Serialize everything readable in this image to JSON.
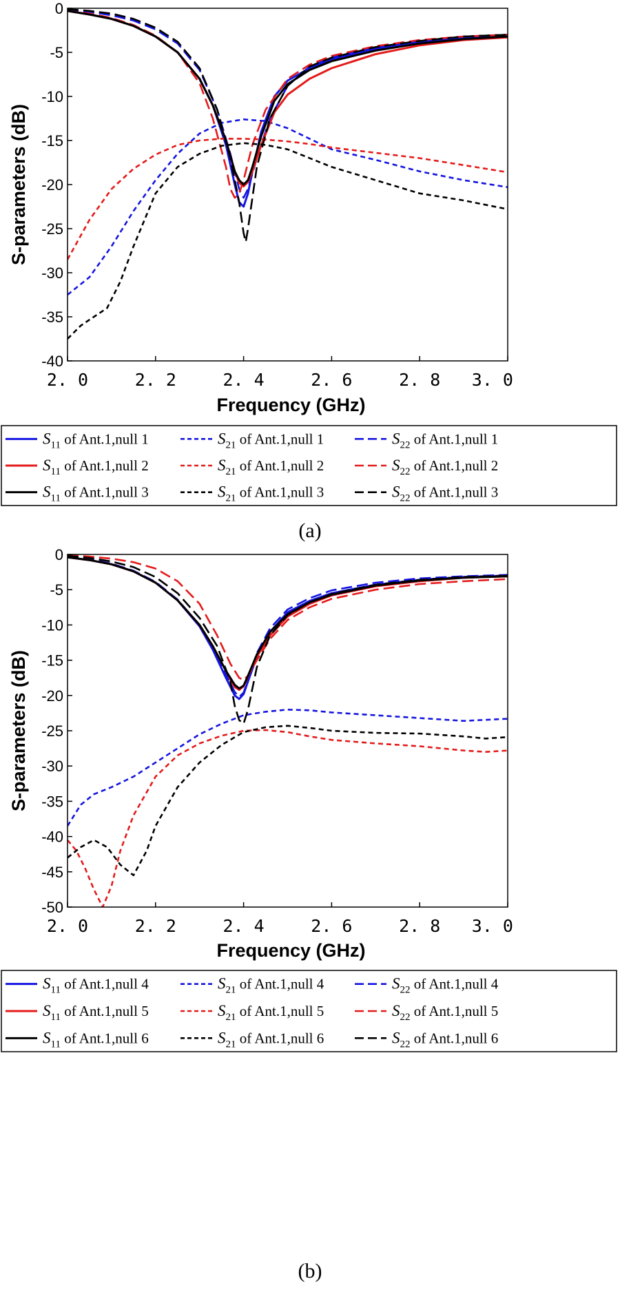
{
  "colors": {
    "blue": "#1515e0",
    "red": "#e41a1a",
    "black": "#000000"
  },
  "legend_text": {
    "s_symbol": "S",
    "of_text": "of Ant.1,null"
  },
  "chart_data": [
    {
      "type": "line",
      "panel_label": "(a)",
      "xlabel": "Frequency (GHz)",
      "ylabel": "S-parameters (dB)",
      "xlim": [
        2.0,
        3.0
      ],
      "ylim": [
        -40,
        0
      ],
      "xticks": [
        "2.0",
        "2.2",
        "2.4",
        "2.6",
        "2.8",
        "3.0"
      ],
      "yticks": [
        "0",
        "-5",
        "-10",
        "-15",
        "-20",
        "-25",
        "-30",
        "-35",
        "-40"
      ],
      "series": [
        {
          "param": "11",
          "null_no": "1",
          "color": "blue",
          "style": "solid",
          "x": [
            2.0,
            2.05,
            2.1,
            2.15,
            2.2,
            2.25,
            2.3,
            2.33,
            2.36,
            2.38,
            2.39,
            2.4,
            2.41,
            2.42,
            2.44,
            2.47,
            2.5,
            2.55,
            2.6,
            2.7,
            2.8,
            2.9,
            3.0
          ],
          "y": [
            -0.3,
            -0.7,
            -1.2,
            -2.0,
            -3.2,
            -5.0,
            -8.0,
            -11.0,
            -15.5,
            -20.0,
            -22.0,
            -22.5,
            -21.0,
            -18.5,
            -14.0,
            -10.0,
            -8.2,
            -6.8,
            -5.8,
            -4.6,
            -3.9,
            -3.4,
            -3.2
          ]
        },
        {
          "param": "21",
          "null_no": "1",
          "color": "blue",
          "style": "dot",
          "x": [
            2.0,
            2.05,
            2.1,
            2.15,
            2.2,
            2.25,
            2.3,
            2.35,
            2.4,
            2.45,
            2.5,
            2.55,
            2.6,
            2.7,
            2.8,
            2.9,
            3.0
          ],
          "y": [
            -32.5,
            -30.5,
            -27.0,
            -23.0,
            -19.5,
            -16.5,
            -14.2,
            -13.0,
            -12.6,
            -12.8,
            -13.6,
            -14.8,
            -16.0,
            -17.2,
            -18.5,
            -19.5,
            -20.3
          ]
        },
        {
          "param": "22",
          "null_no": "1",
          "color": "blue",
          "style": "dash",
          "x": [
            2.0,
            2.05,
            2.1,
            2.15,
            2.2,
            2.25,
            2.3,
            2.34,
            2.37,
            2.39,
            2.4,
            2.41,
            2.43,
            2.46,
            2.5,
            2.55,
            2.6,
            2.7,
            2.8,
            2.9,
            3.0
          ],
          "y": [
            -0.2,
            -0.4,
            -0.8,
            -1.4,
            -2.4,
            -4.0,
            -7.0,
            -11.5,
            -16.5,
            -20.5,
            -21.5,
            -20.5,
            -17.0,
            -12.5,
            -8.8,
            -6.6,
            -5.6,
            -4.4,
            -3.7,
            -3.2,
            -3.0
          ]
        },
        {
          "param": "11",
          "null_no": "2",
          "color": "red",
          "style": "solid",
          "x": [
            2.0,
            2.05,
            2.1,
            2.15,
            2.2,
            2.25,
            2.3,
            2.33,
            2.36,
            2.38,
            2.39,
            2.4,
            2.41,
            2.42,
            2.44,
            2.47,
            2.5,
            2.55,
            2.6,
            2.7,
            2.8,
            2.9,
            3.0
          ],
          "y": [
            -0.3,
            -0.7,
            -1.2,
            -2.0,
            -3.2,
            -5.0,
            -8.0,
            -11.0,
            -15.0,
            -18.5,
            -19.8,
            -20.2,
            -19.7,
            -18.5,
            -15.5,
            -11.8,
            -9.8,
            -8.0,
            -6.8,
            -5.2,
            -4.2,
            -3.6,
            -3.3
          ]
        },
        {
          "param": "21",
          "null_no": "2",
          "color": "red",
          "style": "dot",
          "x": [
            2.0,
            2.05,
            2.1,
            2.15,
            2.2,
            2.25,
            2.3,
            2.35,
            2.4,
            2.45,
            2.5,
            2.55,
            2.6,
            2.7,
            2.8,
            2.9,
            3.0
          ],
          "y": [
            -28.5,
            -24.0,
            -20.5,
            -18.2,
            -16.6,
            -15.5,
            -15.0,
            -14.8,
            -14.8,
            -14.9,
            -15.1,
            -15.4,
            -15.8,
            -16.4,
            -17.0,
            -17.8,
            -18.6
          ]
        },
        {
          "param": "22",
          "null_no": "2",
          "color": "red",
          "style": "dash",
          "x": [
            2.0,
            2.05,
            2.1,
            2.15,
            2.2,
            2.25,
            2.3,
            2.33,
            2.36,
            2.37,
            2.38,
            2.39,
            2.4,
            2.42,
            2.45,
            2.5,
            2.55,
            2.6,
            2.7,
            2.8,
            2.9,
            3.0
          ],
          "y": [
            -0.3,
            -0.6,
            -1.1,
            -1.9,
            -3.1,
            -5.0,
            -8.5,
            -12.5,
            -18.0,
            -20.5,
            -21.5,
            -21.0,
            -19.5,
            -15.5,
            -11.5,
            -8.0,
            -6.4,
            -5.4,
            -4.3,
            -3.6,
            -3.2,
            -3.0
          ]
        },
        {
          "param": "11",
          "null_no": "3",
          "color": "black",
          "style": "solid",
          "x": [
            2.0,
            2.05,
            2.1,
            2.15,
            2.2,
            2.25,
            2.3,
            2.33,
            2.36,
            2.38,
            2.39,
            2.4,
            2.41,
            2.42,
            2.44,
            2.47,
            2.5,
            2.55,
            2.6,
            2.7,
            2.8,
            2.9,
            3.0
          ],
          "y": [
            -0.3,
            -0.7,
            -1.2,
            -2.0,
            -3.2,
            -5.0,
            -8.0,
            -11.0,
            -15.0,
            -18.5,
            -19.5,
            -20.0,
            -19.5,
            -18.0,
            -14.5,
            -10.5,
            -8.6,
            -7.0,
            -6.0,
            -4.8,
            -4.0,
            -3.5,
            -3.2
          ]
        },
        {
          "param": "21",
          "null_no": "3",
          "color": "black",
          "style": "dot",
          "x": [
            2.0,
            2.03,
            2.06,
            2.09,
            2.12,
            2.15,
            2.2,
            2.25,
            2.3,
            2.35,
            2.4,
            2.45,
            2.5,
            2.55,
            2.6,
            2.7,
            2.8,
            2.9,
            3.0
          ],
          "y": [
            -37.5,
            -36.0,
            -35.0,
            -34.0,
            -31.0,
            -27.0,
            -21.0,
            -18.0,
            -16.5,
            -15.6,
            -15.3,
            -15.5,
            -16.0,
            -17.0,
            -18.0,
            -19.5,
            -21.0,
            -21.8,
            -22.8
          ]
        },
        {
          "param": "22",
          "null_no": "3",
          "color": "black",
          "style": "dash",
          "x": [
            2.0,
            2.05,
            2.1,
            2.15,
            2.2,
            2.25,
            2.3,
            2.34,
            2.37,
            2.39,
            2.4,
            2.405,
            2.41,
            2.43,
            2.46,
            2.5,
            2.55,
            2.6,
            2.7,
            2.8,
            2.9,
            3.0
          ],
          "y": [
            -0.1,
            -0.3,
            -0.6,
            -1.2,
            -2.2,
            -3.8,
            -6.8,
            -11.5,
            -17.0,
            -22.0,
            -25.5,
            -26.5,
            -25.0,
            -18.0,
            -12.5,
            -8.8,
            -6.6,
            -5.6,
            -4.4,
            -3.7,
            -3.2,
            -3.0
          ]
        }
      ]
    },
    {
      "type": "line",
      "panel_label": "(b)",
      "xlabel": "Frequency (GHz)",
      "ylabel": "S-parameters (dB)",
      "xlim": [
        2.0,
        3.0
      ],
      "ylim": [
        -50,
        0
      ],
      "xticks": [
        "2.0",
        "2.2",
        "2.4",
        "2.6",
        "2.8",
        "3.0"
      ],
      "yticks": [
        "0",
        "-5",
        "-10",
        "-15",
        "-20",
        "-25",
        "-30",
        "-35",
        "-40",
        "-45",
        "-50"
      ],
      "series": [
        {
          "param": "11",
          "null_no": "4",
          "color": "blue",
          "style": "solid",
          "x": [
            2.0,
            2.05,
            2.1,
            2.15,
            2.2,
            2.25,
            2.3,
            2.33,
            2.36,
            2.38,
            2.39,
            2.4,
            2.41,
            2.43,
            2.46,
            2.5,
            2.55,
            2.6,
            2.7,
            2.8,
            2.9,
            3.0
          ],
          "y": [
            -0.4,
            -0.8,
            -1.4,
            -2.4,
            -4.0,
            -6.5,
            -10.2,
            -13.5,
            -17.5,
            -20.0,
            -20.5,
            -19.8,
            -18.0,
            -14.5,
            -11.0,
            -8.2,
            -6.6,
            -5.5,
            -4.3,
            -3.6,
            -3.2,
            -3.0
          ]
        },
        {
          "param": "21",
          "null_no": "4",
          "color": "blue",
          "style": "dot",
          "x": [
            2.0,
            2.03,
            2.06,
            2.1,
            2.15,
            2.2,
            2.25,
            2.3,
            2.35,
            2.4,
            2.45,
            2.5,
            2.55,
            2.6,
            2.7,
            2.8,
            2.9,
            3.0
          ],
          "y": [
            -38.5,
            -35.5,
            -34.0,
            -33.0,
            -31.5,
            -29.5,
            -27.5,
            -25.5,
            -24.0,
            -22.8,
            -22.3,
            -22.0,
            -22.1,
            -22.4,
            -22.8,
            -23.2,
            -23.6,
            -23.3
          ]
        },
        {
          "param": "22",
          "null_no": "4",
          "color": "blue",
          "style": "dash",
          "x": [
            2.0,
            2.05,
            2.1,
            2.15,
            2.2,
            2.25,
            2.3,
            2.33,
            2.36,
            2.38,
            2.39,
            2.4,
            2.41,
            2.43,
            2.46,
            2.5,
            2.55,
            2.6,
            2.7,
            2.8,
            2.9,
            3.0
          ],
          "y": [
            -0.3,
            -0.7,
            -1.3,
            -2.3,
            -3.9,
            -6.4,
            -10.0,
            -13.2,
            -17.0,
            -19.5,
            -20.2,
            -19.6,
            -17.8,
            -14.0,
            -10.5,
            -7.8,
            -6.2,
            -5.1,
            -4.0,
            -3.4,
            -3.1,
            -2.9
          ]
        },
        {
          "param": "11",
          "null_no": "5",
          "color": "red",
          "style": "solid",
          "x": [
            2.0,
            2.05,
            2.1,
            2.15,
            2.2,
            2.25,
            2.3,
            2.33,
            2.36,
            2.38,
            2.39,
            2.4,
            2.41,
            2.43,
            2.46,
            2.5,
            2.55,
            2.6,
            2.7,
            2.8,
            2.9,
            3.0
          ],
          "y": [
            -0.4,
            -0.8,
            -1.4,
            -2.4,
            -4.0,
            -6.5,
            -10.0,
            -13.0,
            -16.5,
            -18.8,
            -19.2,
            -18.7,
            -17.3,
            -14.5,
            -11.5,
            -8.8,
            -7.0,
            -5.8,
            -4.5,
            -3.8,
            -3.3,
            -3.1
          ]
        },
        {
          "param": "21",
          "null_no": "5",
          "color": "red",
          "style": "dot",
          "x": [
            2.0,
            2.02,
            2.04,
            2.06,
            2.08,
            2.1,
            2.12,
            2.15,
            2.2,
            2.25,
            2.3,
            2.35,
            2.4,
            2.45,
            2.5,
            2.55,
            2.6,
            2.7,
            2.8,
            2.9,
            2.95,
            3.0
          ],
          "y": [
            -40.5,
            -42.0,
            -44.5,
            -47.5,
            -50.0,
            -47.0,
            -42.0,
            -37.0,
            -31.5,
            -28.5,
            -26.8,
            -25.7,
            -25.0,
            -24.9,
            -25.2,
            -25.8,
            -26.3,
            -26.8,
            -27.2,
            -27.8,
            -28.0,
            -27.8
          ]
        },
        {
          "param": "22",
          "null_no": "5",
          "color": "red",
          "style": "dash",
          "x": [
            2.0,
            2.05,
            2.1,
            2.15,
            2.2,
            2.25,
            2.3,
            2.34,
            2.37,
            2.39,
            2.4,
            2.41,
            2.43,
            2.46,
            2.5,
            2.55,
            2.6,
            2.7,
            2.8,
            2.9,
            3.0
          ],
          "y": [
            -0.1,
            -0.3,
            -0.6,
            -1.1,
            -2.0,
            -3.8,
            -7.0,
            -11.5,
            -15.5,
            -17.5,
            -17.8,
            -17.2,
            -15.0,
            -12.0,
            -9.3,
            -7.5,
            -6.3,
            -5.0,
            -4.2,
            -3.8,
            -3.5
          ]
        },
        {
          "param": "11",
          "null_no": "6",
          "color": "black",
          "style": "solid",
          "x": [
            2.0,
            2.05,
            2.1,
            2.15,
            2.2,
            2.25,
            2.3,
            2.33,
            2.36,
            2.38,
            2.39,
            2.4,
            2.41,
            2.43,
            2.46,
            2.5,
            2.55,
            2.6,
            2.7,
            2.8,
            2.9,
            3.0
          ],
          "y": [
            -0.4,
            -0.8,
            -1.4,
            -2.4,
            -4.0,
            -6.5,
            -10.0,
            -13.0,
            -16.5,
            -18.5,
            -19.0,
            -18.6,
            -17.2,
            -14.2,
            -11.0,
            -8.5,
            -6.8,
            -5.7,
            -4.4,
            -3.7,
            -3.3,
            -3.1
          ]
        },
        {
          "param": "21",
          "null_no": "6",
          "color": "black",
          "style": "dot",
          "x": [
            2.0,
            2.03,
            2.06,
            2.09,
            2.12,
            2.15,
            2.18,
            2.2,
            2.25,
            2.3,
            2.35,
            2.4,
            2.45,
            2.5,
            2.55,
            2.6,
            2.7,
            2.8,
            2.9,
            2.95,
            3.0
          ],
          "y": [
            -43.0,
            -41.5,
            -40.5,
            -41.5,
            -44.0,
            -45.5,
            -42.0,
            -38.5,
            -33.0,
            -29.5,
            -27.0,
            -25.2,
            -24.5,
            -24.3,
            -24.6,
            -25.0,
            -25.3,
            -25.4,
            -25.8,
            -26.1,
            -25.9
          ]
        },
        {
          "param": "22",
          "null_no": "6",
          "color": "black",
          "style": "dash",
          "x": [
            2.0,
            2.05,
            2.1,
            2.15,
            2.2,
            2.25,
            2.3,
            2.34,
            2.37,
            2.38,
            2.39,
            2.4,
            2.41,
            2.43,
            2.46,
            2.5,
            2.55,
            2.6,
            2.7,
            2.8,
            2.9,
            3.0
          ],
          "y": [
            -0.2,
            -0.5,
            -1.0,
            -1.8,
            -3.2,
            -5.5,
            -9.0,
            -13.0,
            -18.0,
            -21.5,
            -23.5,
            -24.0,
            -22.0,
            -16.0,
            -11.5,
            -8.6,
            -6.8,
            -5.6,
            -4.3,
            -3.6,
            -3.2,
            -3.0
          ]
        }
      ]
    }
  ]
}
